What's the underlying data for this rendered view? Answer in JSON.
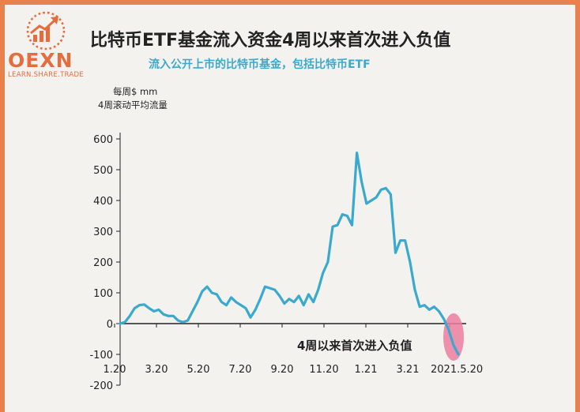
{
  "header": {
    "title": "比特币ETF基金流入资金4周以来首次进入负值",
    "subtitle": "流入公开上市的比特币基金，包括比特币ETF"
  },
  "logo": {
    "name": "OEXN",
    "tagline": "LEARN.SHARE.TRADE"
  },
  "colors": {
    "background_border": "#e9814f",
    "brand": "#e46d3f",
    "line": "#3aa9cf",
    "highlight": "#ec7fa0",
    "text": "#222222"
  },
  "chart_data": {
    "type": "line",
    "ylabel_line1": "每周$ mm",
    "ylabel_line2": "4周滚动平均流量",
    "ylim": [
      -200,
      600
    ],
    "yticks": [
      600,
      500,
      400,
      300,
      200,
      100,
      0,
      -100,
      -200
    ],
    "xtick_labels": [
      "1.20",
      "3.20",
      "5.20",
      "7.20",
      "9.20",
      "11.20",
      "1.21",
      "3.21",
      "2021.5.20"
    ],
    "annotation": "4周以来首次进入负值",
    "grid": false,
    "legend": "none",
    "series": [
      {
        "x": [
          0,
          1,
          2,
          3,
          4,
          5,
          6,
          7,
          8,
          9,
          10,
          11,
          12,
          13,
          14,
          15,
          16,
          17,
          18,
          19,
          20,
          21,
          22,
          23,
          24,
          25,
          26,
          27,
          28,
          29,
          30,
          31,
          32,
          33,
          34,
          35,
          36,
          37,
          38,
          39,
          40,
          41,
          42,
          43,
          44,
          45,
          46,
          47,
          48,
          49,
          50,
          51,
          52,
          53,
          54,
          55,
          56,
          57,
          58,
          59,
          60,
          61,
          62,
          63,
          64,
          65,
          66,
          67,
          68,
          69,
          70
        ],
        "values": [
          0,
          5,
          25,
          50,
          60,
          62,
          50,
          40,
          45,
          30,
          25,
          25,
          10,
          5,
          10,
          40,
          70,
          105,
          120,
          100,
          95,
          70,
          60,
          85,
          70,
          60,
          50,
          20,
          45,
          80,
          120,
          115,
          110,
          90,
          65,
          80,
          70,
          90,
          60,
          95,
          70,
          110,
          165,
          200,
          315,
          320,
          355,
          350,
          320,
          555,
          460,
          390,
          400,
          410,
          435,
          440,
          420,
          230,
          270,
          270,
          200,
          110,
          55,
          60,
          45,
          55,
          40,
          15,
          -20,
          -70,
          -100
        ]
      }
    ]
  }
}
